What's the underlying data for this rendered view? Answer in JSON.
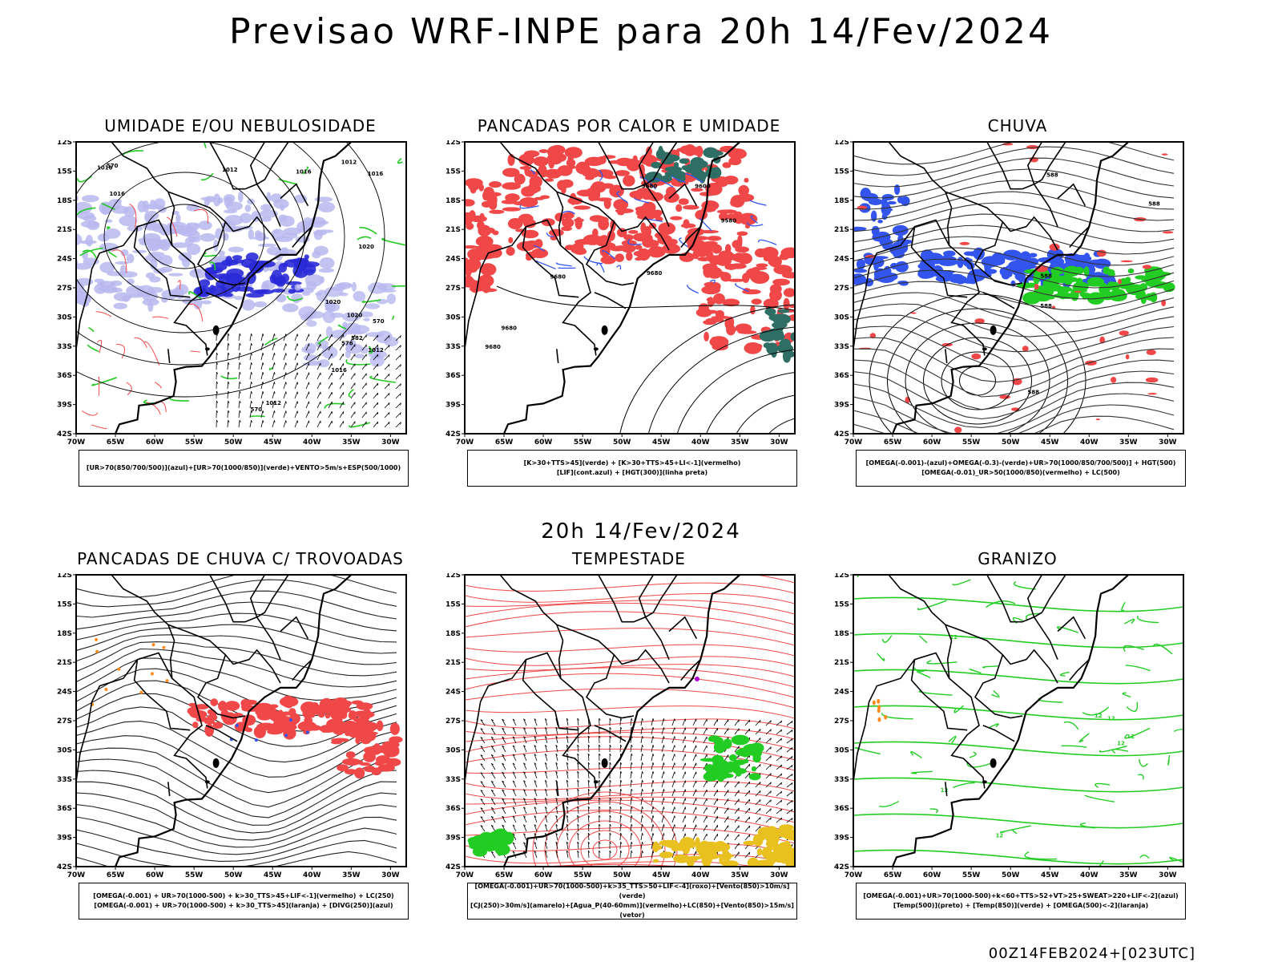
{
  "title": "Previsao WRF-INPE  para 20h 14/Fev/2024",
  "mid_title": "20h 14/Fev/2024",
  "footer": "00Z14FEB2024+[023UTC]",
  "axes": {
    "lat_ticks": [
      "12S",
      "15S",
      "18S",
      "21S",
      "24S",
      "27S",
      "30S",
      "33S",
      "36S",
      "39S",
      "42S"
    ],
    "lon_ticks": [
      "70W",
      "65W",
      "60W",
      "55W",
      "50W",
      "45W",
      "40W",
      "35W",
      "30W"
    ]
  },
  "colors": {
    "blue": "#3355ee",
    "light_blue": "#b8b8f0",
    "dark_blue": "#2a2ad8",
    "green": "#22cc22",
    "red": "#f04848",
    "orange": "#ff8c1a",
    "yellow": "#e8c020",
    "teal": "#2e6e64",
    "purple": "#b000d0"
  },
  "panels": [
    {
      "id": "umidade",
      "title": "UMIDADE E/OU NEBULOSIDADE",
      "legend": [
        "[UR>70(850/700/500)](azul)+[UR>70(1000/850)](verde)+VENTO>5m/s+ESP(500/1000)"
      ],
      "labels": [
        "1012",
        "1012",
        "1012",
        "1012",
        "1016",
        "1016",
        "1016",
        "1016",
        "1020",
        "1020",
        "1020",
        "1016",
        "570",
        "570",
        "576",
        "582",
        "570"
      ]
    },
    {
      "id": "pancadas-calor",
      "title": "PANCADAS POR CALOR E UMIDADE",
      "legend": [
        "[K>30+TTS>45](verde) + [K>30+TTS>45+LI<-1](vermelho)",
        "[LIF](cont.azul) + [HGT(300)](linha preta)"
      ],
      "labels": [
        "9680",
        "9680",
        "9680",
        "9680",
        "9680",
        "9600",
        "9580"
      ]
    },
    {
      "id": "chuva",
      "title": "CHUVA",
      "legend": [
        "[OMEGA(-0.001)-(azul)+OMEGA(-0.3)-(verde)+UR>70(1000/850/700/500)] + HGT(500)",
        "[OMEGA(-0.01)_UR>50(1000/850)(vermelho) + LC(500)"
      ],
      "labels": [
        "588",
        "588",
        "588",
        "588",
        "588"
      ]
    },
    {
      "id": "pancadas-trovoadas",
      "title": "PANCADAS DE CHUVA C/ TROVOADAS",
      "legend": [
        "[OMEGA(-0.001) + UR>70(1000-500) + k>30_TTS>45+LIF<-1](vermelho) + LC(250)",
        "[OMEGA(-0.001) + UR>70(1000-500) + k>30_TTS>45](laranja) + [DIVG(250)](azul)"
      ],
      "labels": []
    },
    {
      "id": "tempestade",
      "title": "TEMPESTADE",
      "legend": [
        "[OMEGA(-0.001)+UR>70(1000-500)+k>35_TTS>50+LIF<-4](roxo)+[Vento(850)>10m/s](verde)",
        "[CJ(250)>30m/s](amarelo)+[Agua_P(40-60mm)](vermelho)+LC(850)+[Vento(850)>15m/s](vetor)"
      ],
      "labels": []
    },
    {
      "id": "granizo",
      "title": "GRANIZO",
      "legend": [
        "[OMEGA(-0.001)+UR>70(1000-500)+k<60+TTS>52+VT>25+SWEAT>220+LIF<-2](azul)",
        "[Temp(500)](preto) + [Temp(850)](verde) + [OMEGA(500)<-2](laranja)"
      ],
      "labels": [
        "12",
        "12",
        "12",
        "12",
        "12",
        "12",
        "12"
      ]
    }
  ]
}
